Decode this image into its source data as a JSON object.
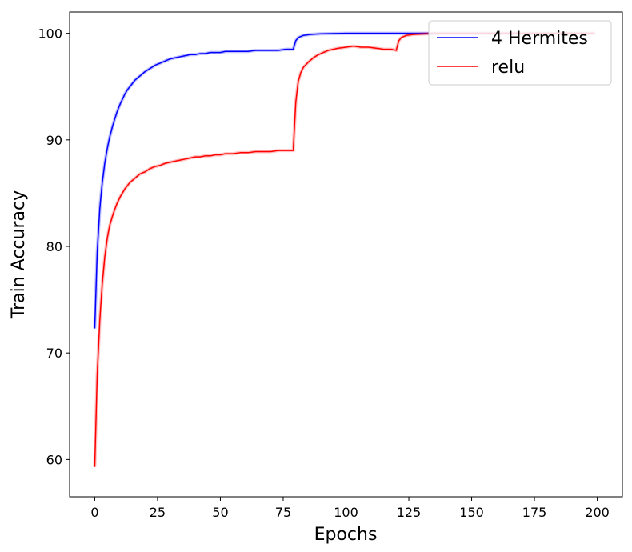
{
  "chart_data": {
    "type": "line",
    "title": "",
    "xlabel": "Epochs",
    "ylabel": "Train Accuracy",
    "xlim": [
      -10,
      210
    ],
    "ylim": [
      56.5,
      102
    ],
    "xticks": [
      0,
      25,
      50,
      75,
      100,
      125,
      150,
      175,
      200
    ],
    "yticks": [
      60,
      70,
      80,
      90,
      100
    ],
    "grid": false,
    "legend_position": "top-right",
    "series": [
      {
        "name": "4 Hermites",
        "color": "#0000ff",
        "points": [
          [
            0,
            72.3
          ],
          [
            1,
            79.5
          ],
          [
            2,
            83.5
          ],
          [
            3,
            86.0
          ],
          [
            4,
            87.8
          ],
          [
            5,
            89.2
          ],
          [
            6,
            90.3
          ],
          [
            7,
            91.2
          ],
          [
            8,
            92.0
          ],
          [
            9,
            92.7
          ],
          [
            10,
            93.3
          ],
          [
            11,
            93.8
          ],
          [
            12,
            94.3
          ],
          [
            13,
            94.7
          ],
          [
            14,
            95.0
          ],
          [
            15,
            95.3
          ],
          [
            16,
            95.6
          ],
          [
            17,
            95.8
          ],
          [
            18,
            96.0
          ],
          [
            19,
            96.2
          ],
          [
            20,
            96.4
          ],
          [
            22,
            96.7
          ],
          [
            24,
            97.0
          ],
          [
            26,
            97.2
          ],
          [
            28,
            97.4
          ],
          [
            30,
            97.6
          ],
          [
            32,
            97.7
          ],
          [
            34,
            97.8
          ],
          [
            36,
            97.9
          ],
          [
            38,
            98.0
          ],
          [
            40,
            98.0
          ],
          [
            42,
            98.1
          ],
          [
            44,
            98.1
          ],
          [
            46,
            98.2
          ],
          [
            48,
            98.2
          ],
          [
            50,
            98.2
          ],
          [
            52,
            98.3
          ],
          [
            55,
            98.3
          ],
          [
            58,
            98.3
          ],
          [
            61,
            98.3
          ],
          [
            64,
            98.4
          ],
          [
            67,
            98.4
          ],
          [
            70,
            98.4
          ],
          [
            73,
            98.4
          ],
          [
            76,
            98.5
          ],
          [
            79,
            98.5
          ],
          [
            80,
            99.3
          ],
          [
            81,
            99.6
          ],
          [
            83,
            99.8
          ],
          [
            86,
            99.9
          ],
          [
            90,
            99.95
          ],
          [
            100,
            100.0
          ],
          [
            120,
            100.0
          ],
          [
            140,
            100.0
          ],
          [
            160,
            100.0
          ],
          [
            180,
            100.0
          ],
          [
            199,
            100.0
          ]
        ]
      },
      {
        "name": "relu",
        "color": "#ff0000",
        "points": [
          [
            0,
            59.3
          ],
          [
            1,
            68.0
          ],
          [
            2,
            73.0
          ],
          [
            3,
            76.5
          ],
          [
            4,
            79.0
          ],
          [
            5,
            80.8
          ],
          [
            6,
            82.0
          ],
          [
            7,
            82.8
          ],
          [
            8,
            83.5
          ],
          [
            9,
            84.1
          ],
          [
            10,
            84.6
          ],
          [
            11,
            85.0
          ],
          [
            12,
            85.4
          ],
          [
            13,
            85.7
          ],
          [
            14,
            86.0
          ],
          [
            15,
            86.2
          ],
          [
            16,
            86.4
          ],
          [
            17,
            86.6
          ],
          [
            18,
            86.8
          ],
          [
            19,
            86.9
          ],
          [
            20,
            87.0
          ],
          [
            22,
            87.3
          ],
          [
            24,
            87.5
          ],
          [
            26,
            87.6
          ],
          [
            28,
            87.8
          ],
          [
            30,
            87.9
          ],
          [
            32,
            88.0
          ],
          [
            34,
            88.1
          ],
          [
            36,
            88.2
          ],
          [
            38,
            88.3
          ],
          [
            40,
            88.4
          ],
          [
            42,
            88.4
          ],
          [
            44,
            88.5
          ],
          [
            46,
            88.5
          ],
          [
            48,
            88.6
          ],
          [
            50,
            88.6
          ],
          [
            52,
            88.7
          ],
          [
            55,
            88.7
          ],
          [
            58,
            88.8
          ],
          [
            61,
            88.8
          ],
          [
            64,
            88.9
          ],
          [
            67,
            88.9
          ],
          [
            70,
            88.9
          ],
          [
            73,
            89.0
          ],
          [
            76,
            89.0
          ],
          [
            79,
            89.0
          ],
          [
            80,
            93.5
          ],
          [
            81,
            95.5
          ],
          [
            82,
            96.3
          ],
          [
            83,
            96.8
          ],
          [
            85,
            97.3
          ],
          [
            87,
            97.7
          ],
          [
            89,
            98.0
          ],
          [
            91,
            98.2
          ],
          [
            93,
            98.4
          ],
          [
            95,
            98.5
          ],
          [
            97,
            98.6
          ],
          [
            100,
            98.7
          ],
          [
            103,
            98.8
          ],
          [
            106,
            98.7
          ],
          [
            109,
            98.7
          ],
          [
            112,
            98.6
          ],
          [
            115,
            98.5
          ],
          [
            118,
            98.5
          ],
          [
            120,
            98.4
          ],
          [
            121,
            99.3
          ],
          [
            122,
            99.6
          ],
          [
            124,
            99.8
          ],
          [
            127,
            99.9
          ],
          [
            132,
            99.95
          ],
          [
            140,
            100.0
          ],
          [
            160,
            100.0
          ],
          [
            180,
            100.0
          ],
          [
            199,
            100.0
          ]
        ]
      }
    ]
  }
}
